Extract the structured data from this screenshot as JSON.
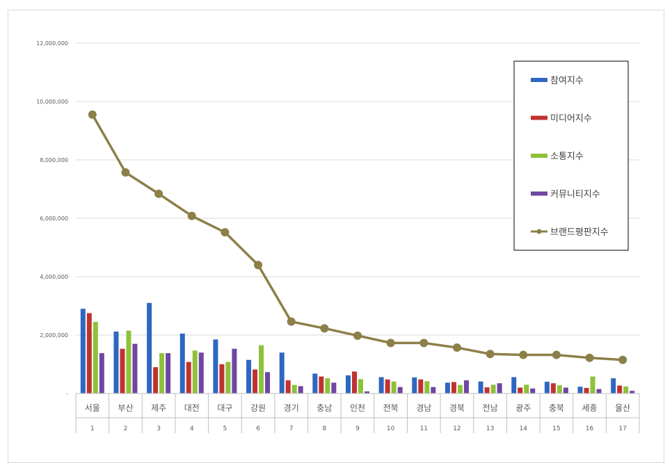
{
  "chart_data": {
    "type": "bar",
    "categories": [
      "서울",
      "부산",
      "제주",
      "대전",
      "대구",
      "강원",
      "경기",
      "충남",
      "인천",
      "전북",
      "경남",
      "경북",
      "전남",
      "광주",
      "충북",
      "세종",
      "울산"
    ],
    "ranks": [
      "1",
      "2",
      "3",
      "4",
      "5",
      "6",
      "7",
      "8",
      "9",
      "10",
      "11",
      "12",
      "13",
      "14",
      "15",
      "16",
      "17"
    ],
    "series": [
      {
        "name": "참여지수",
        "kind": "bar",
        "color": "#2e67c1",
        "values": [
          2900000,
          2120000,
          3100000,
          2050000,
          1850000,
          1150000,
          1400000,
          680000,
          620000,
          560000,
          550000,
          370000,
          410000,
          560000,
          400000,
          230000,
          520000
        ]
      },
      {
        "name": "미디어지수",
        "kind": "bar",
        "color": "#c0322f",
        "values": [
          2750000,
          1530000,
          900000,
          1080000,
          1000000,
          820000,
          450000,
          580000,
          750000,
          480000,
          480000,
          390000,
          210000,
          200000,
          350000,
          190000,
          270000
        ]
      },
      {
        "name": "소통지수",
        "kind": "bar",
        "color": "#8ec13a",
        "values": [
          2450000,
          2150000,
          1380000,
          1470000,
          1080000,
          1650000,
          290000,
          520000,
          490000,
          410000,
          420000,
          290000,
          300000,
          300000,
          280000,
          580000,
          240000
        ]
      },
      {
        "name": "커뮤니티지수",
        "kind": "bar",
        "color": "#6f46a3",
        "values": [
          1380000,
          1700000,
          1380000,
          1400000,
          1530000,
          730000,
          250000,
          370000,
          70000,
          220000,
          220000,
          450000,
          350000,
          170000,
          200000,
          150000,
          90000
        ]
      },
      {
        "name": "브랜드평판지수",
        "kind": "line",
        "color": "#8c7f48",
        "values": [
          9550000,
          7570000,
          6840000,
          6080000,
          5520000,
          4400000,
          2460000,
          2230000,
          1980000,
          1730000,
          1730000,
          1570000,
          1350000,
          1320000,
          1320000,
          1220000,
          1150000
        ]
      }
    ],
    "ylim": [
      0,
      12000000
    ],
    "yticks": [
      "-",
      "2,000,000",
      "4,000,000",
      "6,000,000",
      "8,000,000",
      "10,000,000",
      "12,000,000"
    ],
    "grid": true,
    "legend_position": "right"
  }
}
